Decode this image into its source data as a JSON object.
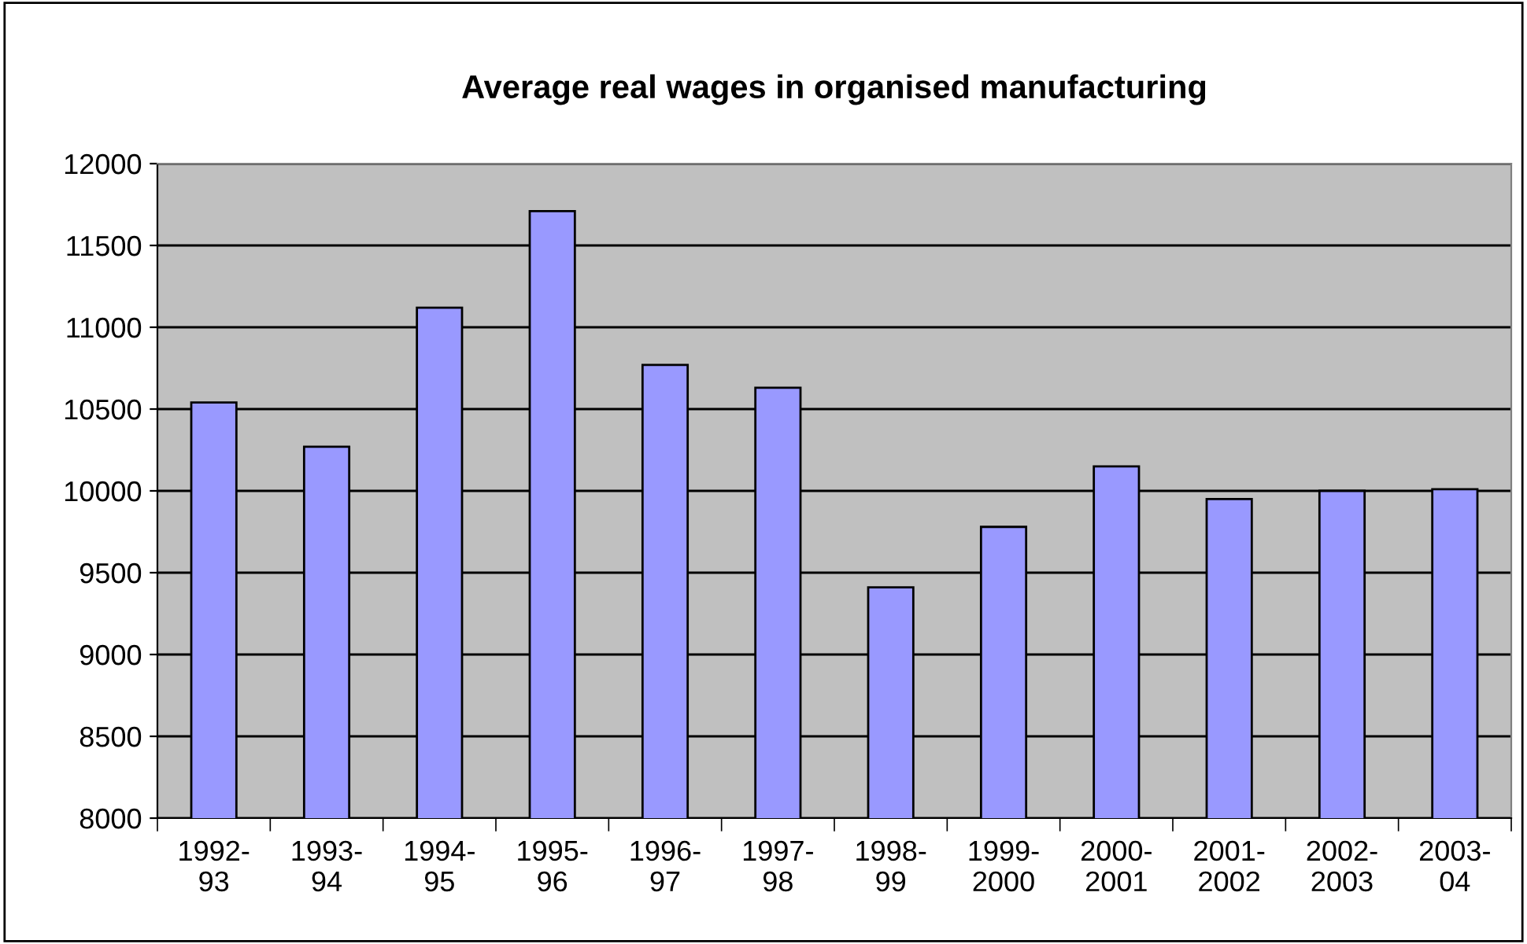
{
  "chart_data": {
    "type": "bar",
    "title": "Average real wages in organised manufacturing",
    "categories": [
      "1992-\n93",
      "1993-\n94",
      "1994-\n95",
      "1995-\n96",
      "1996-\n97",
      "1997-\n98",
      "1998-\n99",
      "1999-\n2000",
      "2000-\n2001",
      "2001-\n2002",
      "2002-\n2003",
      "2003-\n04"
    ],
    "values": [
      10540,
      10270,
      11120,
      11710,
      10770,
      10630,
      9410,
      9780,
      10150,
      9950,
      10000,
      10010
    ],
    "color": "#9999ff",
    "ylim": [
      8000,
      12000
    ],
    "yticks": [
      8000,
      8500,
      9000,
      9500,
      10000,
      10500,
      11000,
      11500,
      12000
    ],
    "grid": "y"
  }
}
